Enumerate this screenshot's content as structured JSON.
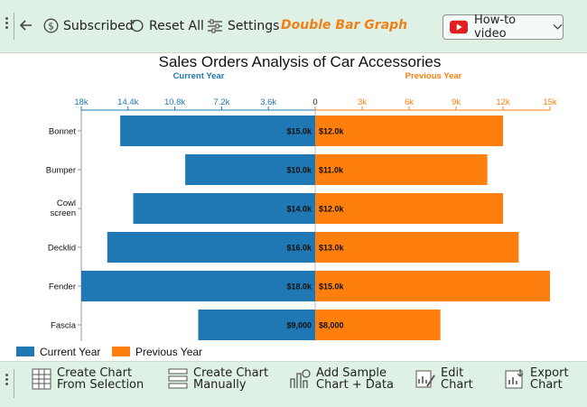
{
  "toolbar": {
    "back_icon": "back-arrow-icon",
    "subscribed_label": "Subscribed",
    "reset_label": "Reset All",
    "settings_label": "Settings",
    "brand_label": "Double Bar Graph",
    "howto_label": "How-to video"
  },
  "bottom_toolbar": {
    "create_selection_line1": "Create Chart",
    "create_selection_line2": "From Selection",
    "create_manual_line1": "Create Chart",
    "create_manual_line2": "Manually",
    "add_sample_line1": "Add Sample",
    "add_sample_line2": "Chart + Data",
    "edit_line1": "Edit",
    "edit_line2": "Chart",
    "export_line1": "Export",
    "export_line2": "Chart"
  },
  "colors": {
    "current": "#1f77b4",
    "previous": "#ff7f0e",
    "toolbar_bg": "#dff0e4",
    "brand": "#f08018"
  },
  "chart_data": {
    "type": "bar",
    "orientation": "horizontal-diverging",
    "title": "Sales Orders Analysis of Car Accessories",
    "categories": [
      "Bonnet",
      "Bumper",
      "Cowl screen",
      "Decklid",
      "Fender",
      "Fascia"
    ],
    "series": [
      {
        "name": "Current Year",
        "values": [
          15000,
          10000,
          14000,
          16000,
          18000,
          9000
        ],
        "labels": [
          "$15.0k",
          "$10.0k",
          "$14.0k",
          "$16.0k",
          "$18.0k",
          "$9,000"
        ]
      },
      {
        "name": "Previous Year",
        "values": [
          12000,
          11000,
          12000,
          13000,
          15000,
          8000
        ],
        "labels": [
          "$12.0k",
          "$11.0k",
          "$12.0k",
          "$13.0k",
          "$15.0k",
          "$8,000"
        ]
      }
    ],
    "left_axis": {
      "title": "Current Year",
      "ticks": [
        "18k",
        "14.4k",
        "10.8k",
        "7.2k",
        "3.6k",
        "0"
      ],
      "max": 18000
    },
    "right_axis": {
      "title": "Previous Year",
      "ticks": [
        "0",
        "3k",
        "6k",
        "9k",
        "12k",
        "15k"
      ],
      "max": 15000
    },
    "legend": {
      "placement": "bottom-left",
      "items": [
        "Current Year",
        "Previous Year"
      ]
    }
  }
}
